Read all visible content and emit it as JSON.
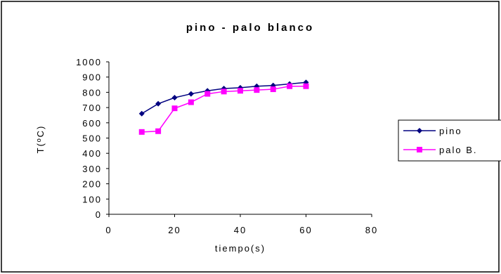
{
  "chart_data": {
    "type": "line",
    "title": "pino - palo blanco",
    "xlabel": "tiempo(s)",
    "ylabel": "T(ºC)",
    "xlim": [
      0,
      80
    ],
    "ylim": [
      0,
      1000
    ],
    "xticks": [
      0,
      20,
      40,
      60,
      80
    ],
    "yticks": [
      0,
      100,
      200,
      300,
      400,
      500,
      600,
      700,
      800,
      900,
      1000
    ],
    "xtick_labels": [
      "0",
      "20",
      "40",
      "60",
      "80"
    ],
    "ytick_labels": [
      "0",
      "100",
      "200",
      "300",
      "400",
      "500",
      "600",
      "700",
      "800",
      "900",
      "1000"
    ],
    "grid": false,
    "legend_position": "right",
    "series": [
      {
        "name": "pino",
        "color": "#000080",
        "marker": "diamond",
        "x": [
          10,
          15,
          20,
          25,
          30,
          35,
          40,
          45,
          50,
          55,
          60
        ],
        "y": [
          660,
          725,
          765,
          790,
          810,
          825,
          830,
          840,
          845,
          855,
          865
        ]
      },
      {
        "name": "palo B.",
        "color": "#ff00ff",
        "marker": "square",
        "x": [
          10,
          15,
          20,
          25,
          30,
          35,
          40,
          45,
          50,
          55,
          60
        ],
        "y": [
          540,
          545,
          695,
          735,
          790,
          805,
          810,
          815,
          820,
          840,
          840
        ]
      }
    ]
  }
}
